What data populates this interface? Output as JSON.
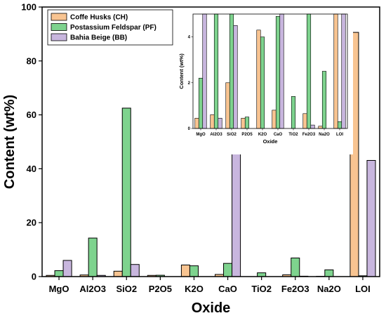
{
  "chart_data": [
    {
      "type": "bar",
      "title": "",
      "xlabel": "Oxide",
      "ylabel": "Content (wt%)",
      "ylim": [
        0,
        100
      ],
      "yticks": [
        0,
        20,
        40,
        60,
        80,
        100
      ],
      "grid": false,
      "legend_position": "top-left",
      "categories": [
        "MgO",
        "Al2O3",
        "SiO2",
        "P2O5",
        "K2O",
        "CaO",
        "TiO2",
        "Fe2O3",
        "Na2O",
        "LOI"
      ],
      "series": [
        {
          "name": "Coffe Husks (CH)",
          "color": "#f8c491",
          "values": [
            0.45,
            0.6,
            2.0,
            0.45,
            4.3,
            0.8,
            0.0,
            0.65,
            0.1,
            90.6
          ]
        },
        {
          "name": "Postassium Feldspar (PF)",
          "color": "#7ed38e",
          "values": [
            2.2,
            14.3,
            62.5,
            0.5,
            4.0,
            4.9,
            1.4,
            6.9,
            2.5,
            0.3
          ]
        },
        {
          "name": "Bahia Beige (BB)",
          "color": "#c8b6de",
          "values": [
            6.0,
            0.45,
            4.5,
            0.0,
            0.0,
            45.8,
            0.0,
            0.15,
            0.0,
            43.1
          ]
        }
      ]
    },
    {
      "type": "bar",
      "title": "",
      "xlabel": "Oxide",
      "ylabel": "Content (wt%)",
      "ylim": [
        0,
        5
      ],
      "yticks": [
        0,
        2,
        4
      ],
      "grid": false,
      "legend_position": "none",
      "categories": [
        "MgO",
        "Al2O3",
        "SiO2",
        "P2O5",
        "K2O",
        "CaO",
        "TiO2",
        "Fe2O3",
        "Na2O",
        "LOI"
      ],
      "series_ref": "same as main chart"
    }
  ]
}
